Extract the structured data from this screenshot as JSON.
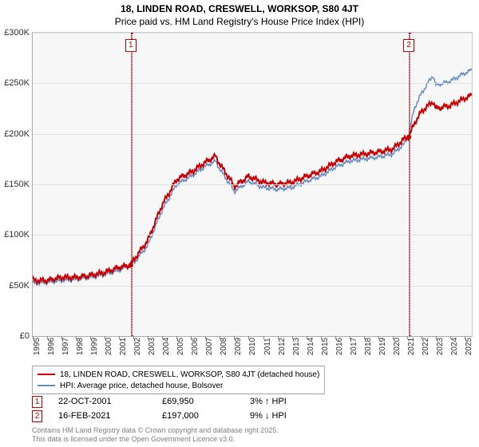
{
  "title": "18, LINDEN ROAD, CRESWELL, WORKSOP, S80 4JT",
  "subtitle": "Price paid vs. HM Land Registry's House Price Index (HPI)",
  "chart": {
    "type": "line",
    "background_color": "#f7f7f7",
    "grid_color": "#e0e0e0",
    "ylim": [
      0,
      300000
    ],
    "ytick_step": 50000,
    "ytick_labels": [
      "£0",
      "£50K",
      "£100K",
      "£150K",
      "£200K",
      "£250K",
      "£300K"
    ],
    "xlim": [
      1995,
      2025.5
    ],
    "xtick_years": [
      1995,
      1996,
      1997,
      1998,
      1999,
      2000,
      2001,
      2002,
      2003,
      2004,
      2005,
      2006,
      2007,
      2008,
      2009,
      2010,
      2011,
      2012,
      2013,
      2014,
      2015,
      2016,
      2017,
      2018,
      2019,
      2020,
      2021,
      2022,
      2023,
      2024,
      2025
    ],
    "series": [
      {
        "name": "property",
        "label": "18, LINDEN ROAD, CRESWELL, WORKSOP, S80 4JT (detached house)",
        "color": "#cc0000",
        "line_width": 2,
        "data": [
          [
            1995,
            55000
          ],
          [
            1996,
            55000
          ],
          [
            1997,
            58000
          ],
          [
            1998,
            58000
          ],
          [
            1999,
            60000
          ],
          [
            2000,
            63000
          ],
          [
            2001,
            68000
          ],
          [
            2001.8,
            70000
          ],
          [
            2002,
            75000
          ],
          [
            2003,
            95000
          ],
          [
            2004,
            130000
          ],
          [
            2005,
            155000
          ],
          [
            2006,
            162000
          ],
          [
            2007,
            172000
          ],
          [
            2007.7,
            178000
          ],
          [
            2008,
            170000
          ],
          [
            2008.7,
            155000
          ],
          [
            2009,
            148000
          ],
          [
            2010,
            158000
          ],
          [
            2011,
            152000
          ],
          [
            2012,
            150000
          ],
          [
            2013,
            152000
          ],
          [
            2014,
            158000
          ],
          [
            2015,
            163000
          ],
          [
            2016,
            172000
          ],
          [
            2017,
            178000
          ],
          [
            2018,
            180000
          ],
          [
            2019,
            182000
          ],
          [
            2020,
            185000
          ],
          [
            2020.8,
            195000
          ],
          [
            2021.13,
            197000
          ],
          [
            2021.5,
            210000
          ],
          [
            2022,
            222000
          ],
          [
            2022.8,
            232000
          ],
          [
            2023,
            225000
          ],
          [
            2024,
            228000
          ],
          [
            2025,
            235000
          ],
          [
            2025.5,
            238000
          ]
        ]
      },
      {
        "name": "hpi",
        "label": "HPI: Average price, detached house, Bolsover",
        "color": "#6a8fc4",
        "line_width": 1.5,
        "data": [
          [
            1995,
            52000
          ],
          [
            1996,
            53000
          ],
          [
            1997,
            55000
          ],
          [
            1998,
            56000
          ],
          [
            1999,
            58000
          ],
          [
            2000,
            61000
          ],
          [
            2001,
            65000
          ],
          [
            2002,
            72000
          ],
          [
            2003,
            90000
          ],
          [
            2004,
            125000
          ],
          [
            2005,
            150000
          ],
          [
            2006,
            158000
          ],
          [
            2007,
            168000
          ],
          [
            2007.7,
            173000
          ],
          [
            2008,
            165000
          ],
          [
            2008.7,
            150000
          ],
          [
            2009,
            143000
          ],
          [
            2010,
            153000
          ],
          [
            2011,
            147000
          ],
          [
            2012,
            145000
          ],
          [
            2013,
            147000
          ],
          [
            2014,
            153000
          ],
          [
            2015,
            158000
          ],
          [
            2016,
            167000
          ],
          [
            2017,
            173000
          ],
          [
            2018,
            175000
          ],
          [
            2019,
            177000
          ],
          [
            2020,
            180000
          ],
          [
            2020.8,
            190000
          ],
          [
            2021.13,
            200000
          ],
          [
            2021.5,
            225000
          ],
          [
            2022,
            240000
          ],
          [
            2022.8,
            258000
          ],
          [
            2023,
            248000
          ],
          [
            2024,
            252000
          ],
          [
            2025,
            260000
          ],
          [
            2025.5,
            263000
          ]
        ]
      }
    ],
    "markers": [
      {
        "id": "1",
        "x": 2001.81,
        "color": "#cc0000"
      },
      {
        "id": "2",
        "x": 2021.13,
        "color": "#cc0000"
      }
    ]
  },
  "legend": {
    "items": [
      {
        "color": "#cc0000",
        "thick": true,
        "label": "18, LINDEN ROAD, CRESWELL, WORKSOP, S80 4JT (detached house)"
      },
      {
        "color": "#6a8fc4",
        "thick": false,
        "label": "HPI: Average price, detached house, Bolsover"
      }
    ]
  },
  "events": [
    {
      "id": "1",
      "color": "#cc0000",
      "date": "22-OCT-2001",
      "price": "£69,950",
      "pct": "3%",
      "direction": "up",
      "vs": "HPI"
    },
    {
      "id": "2",
      "color": "#cc0000",
      "date": "16-FEB-2021",
      "price": "£197,000",
      "pct": "9%",
      "direction": "down",
      "vs": "HPI"
    }
  ],
  "footer": {
    "line1": "Contains HM Land Registry data © Crown copyright and database right 2025.",
    "line2": "This data is licensed under the Open Government Licence v3.0."
  }
}
